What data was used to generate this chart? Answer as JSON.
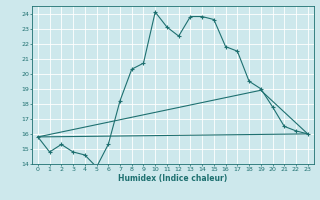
{
  "title": "",
  "xlabel": "Humidex (Indice chaleur)",
  "ylabel": "",
  "bg_color": "#cde8ec",
  "grid_color": "#ffffff",
  "line_color": "#1e7070",
  "xlim": [
    -0.5,
    23.5
  ],
  "ylim": [
    14,
    24.5
  ],
  "xticks": [
    0,
    1,
    2,
    3,
    4,
    5,
    6,
    7,
    8,
    9,
    10,
    11,
    12,
    13,
    14,
    15,
    16,
    17,
    18,
    19,
    20,
    21,
    22,
    23
  ],
  "yticks": [
    14,
    15,
    16,
    17,
    18,
    19,
    20,
    21,
    22,
    23,
    24
  ],
  "line1_x": [
    0,
    1,
    2,
    3,
    4,
    5,
    6,
    7,
    8,
    9,
    10,
    11,
    12,
    13,
    14,
    15,
    16,
    17,
    18,
    19,
    20,
    21,
    22,
    23
  ],
  "line1_y": [
    15.8,
    14.8,
    15.3,
    14.8,
    14.6,
    13.8,
    15.3,
    18.2,
    20.3,
    20.7,
    24.1,
    23.1,
    22.5,
    23.8,
    23.8,
    23.6,
    21.8,
    21.5,
    19.5,
    19.0,
    17.8,
    16.5,
    16.2,
    16.0
  ],
  "line2_x": [
    0,
    23
  ],
  "line2_y": [
    15.8,
    16.0
  ],
  "line3_x": [
    0,
    19,
    23
  ],
  "line3_y": [
    15.8,
    18.9,
    16.0
  ]
}
